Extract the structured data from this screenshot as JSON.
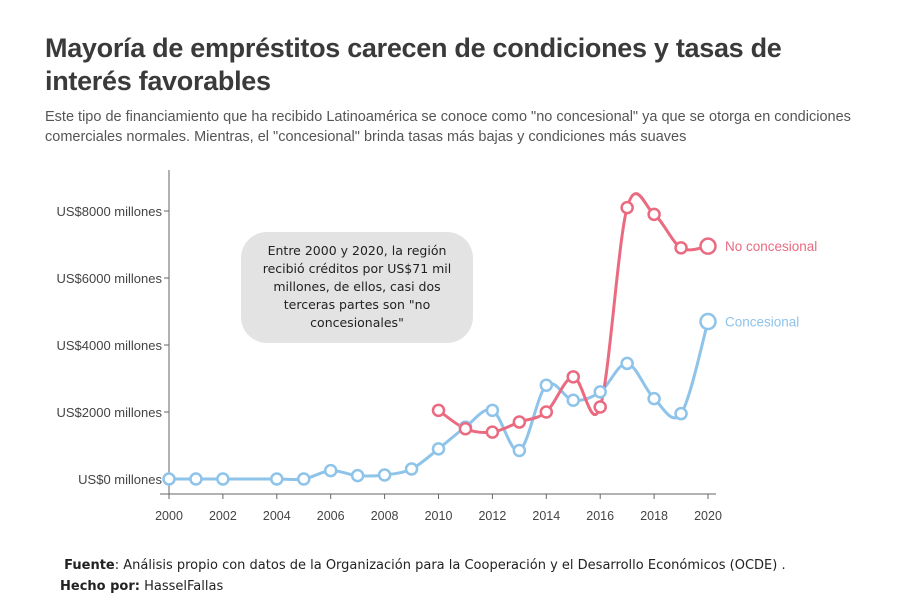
{
  "title": "Mayoría de empréstitos carecen de condiciones y tasas de interés favorables",
  "subtitle": "Este tipo de financiamiento que ha recibido Latinoamérica se conoce como \"no concesional\" ya que se otorga en condiciones comerciales normales. Mientras, el \"concesional\" brinda tasas más bajas y condiciones más suaves",
  "annotation": "Entre 2000 y 2020, la región recibió créditos por US$71 mil millones, de ellos, casi dos terceras partes son \"no concesionales\"",
  "footer": {
    "source_label": "Fuente",
    "source_text": ": Análisis propio con datos de la Organización para la Cooperación y el Desarrollo Económicos (OCDE)  . ",
    "author_label": "Hecho por:",
    "author_text": " HasselFallas"
  },
  "chart_data": {
    "type": "line",
    "title": "Mayoría de empréstitos carecen de condiciones y tasas de interés favorables",
    "xlabel": "",
    "ylabel": "",
    "x_ticks": [
      "2000",
      "2002",
      "2004",
      "2006",
      "2008",
      "2010",
      "2012",
      "2014",
      "2016",
      "2018",
      "2020"
    ],
    "y_ticks": [
      "US$0 millones",
      "US$2000 millones",
      "US$4000 millones",
      "US$6000 millones",
      "US$8000 millones"
    ],
    "xlim": [
      2000,
      2020
    ],
    "ylim": [
      0,
      9000
    ],
    "grid": false,
    "series": [
      {
        "name": "No concesional",
        "color": "#ea6a80",
        "x": [
          2010,
          2011,
          2012,
          2013,
          2014,
          2015,
          2016,
          2017,
          2018,
          2019,
          2020
        ],
        "values": [
          2050,
          1500,
          1400,
          1700,
          2000,
          3050,
          2150,
          8100,
          7900,
          6900,
          6950
        ]
      },
      {
        "name": "Concesional",
        "color": "#8ec3ea",
        "x": [
          2000,
          2001,
          2002,
          2004,
          2005,
          2006,
          2007,
          2008,
          2009,
          2010,
          2011,
          2012,
          2013,
          2014,
          2015,
          2016,
          2017,
          2018,
          2019,
          2020
        ],
        "values": [
          0,
          0,
          0,
          0,
          0,
          250,
          100,
          120,
          300,
          900,
          1550,
          2050,
          850,
          2800,
          2350,
          2600,
          3450,
          2400,
          1950,
          4700
        ]
      }
    ]
  }
}
